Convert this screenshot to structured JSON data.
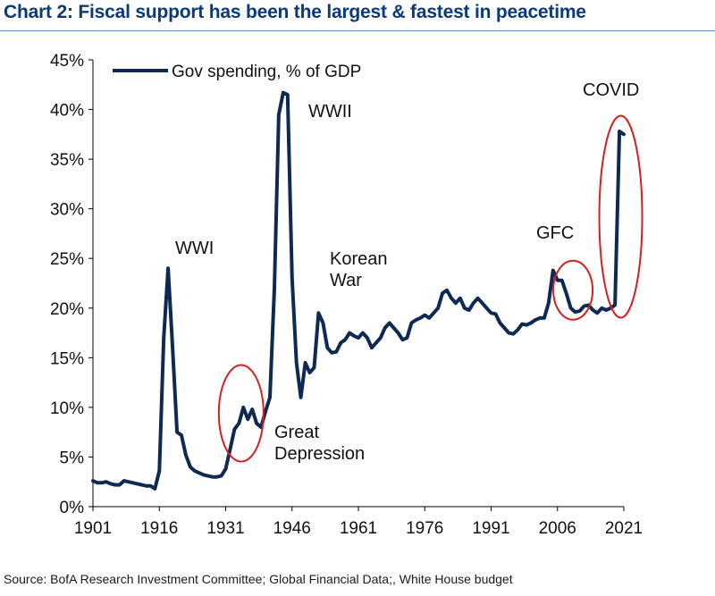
{
  "title": "Chart 2: Fiscal support has been the largest & fastest in peacetime",
  "source": "Source: BofA Research Investment Committee; Global Financial Data;, White House budget",
  "colors": {
    "line": "#0e2a52",
    "circle": "#d42020",
    "title": "#0a3a7a"
  },
  "chart_data": {
    "type": "line",
    "title": "Chart 2: Fiscal support has been the largest & fastest in peacetime",
    "xlabel": "",
    "ylabel": "",
    "xlim": [
      1901,
      2021
    ],
    "ylim": [
      0,
      45
    ],
    "x_ticks": [
      "1901",
      "1916",
      "1931",
      "1946",
      "1961",
      "1976",
      "1991",
      "2006",
      "2021"
    ],
    "y_ticks": [
      "0%",
      "5%",
      "10%",
      "15%",
      "20%",
      "25%",
      "30%",
      "35%",
      "40%",
      "45%"
    ],
    "grid": false,
    "legend": "top-left",
    "series": [
      {
        "name": "Gov spending, % of GDP",
        "x": [
          1901,
          1902,
          1903,
          1904,
          1905,
          1906,
          1907,
          1908,
          1909,
          1910,
          1911,
          1912,
          1913,
          1914,
          1915,
          1916,
          1917,
          1918,
          1919,
          1920,
          1921,
          1922,
          1923,
          1924,
          1925,
          1926,
          1927,
          1928,
          1929,
          1930,
          1931,
          1932,
          1933,
          1934,
          1935,
          1936,
          1937,
          1938,
          1939,
          1940,
          1941,
          1942,
          1943,
          1944,
          1945,
          1946,
          1947,
          1948,
          1949,
          1950,
          1951,
          1952,
          1953,
          1954,
          1955,
          1956,
          1957,
          1958,
          1959,
          1960,
          1961,
          1962,
          1963,
          1964,
          1965,
          1966,
          1967,
          1968,
          1969,
          1970,
          1971,
          1972,
          1973,
          1974,
          1975,
          1976,
          1977,
          1978,
          1979,
          1980,
          1981,
          1982,
          1983,
          1984,
          1985,
          1986,
          1987,
          1988,
          1989,
          1990,
          1991,
          1992,
          1993,
          1994,
          1995,
          1996,
          1997,
          1998,
          1999,
          2000,
          2001,
          2002,
          2003,
          2004,
          2005,
          2006,
          2007,
          2008,
          2009,
          2010,
          2011,
          2012,
          2013,
          2014,
          2015,
          2016,
          2017,
          2018,
          2019,
          2020,
          2021
        ],
        "y": [
          2.6,
          2.4,
          2.4,
          2.5,
          2.3,
          2.2,
          2.2,
          2.6,
          2.5,
          2.4,
          2.3,
          2.2,
          2.1,
          2.1,
          1.8,
          3.6,
          17.0,
          24.0,
          16.0,
          7.5,
          7.2,
          5.2,
          4.0,
          3.6,
          3.4,
          3.2,
          3.1,
          3.0,
          3.0,
          3.1,
          3.8,
          5.8,
          7.8,
          8.4,
          10.0,
          8.8,
          9.8,
          8.4,
          8.0,
          9.6,
          11.0,
          22.0,
          39.5,
          41.7,
          41.5,
          23.0,
          14.5,
          11.0,
          14.5,
          13.5,
          14.0,
          19.5,
          18.5,
          16.0,
          15.5,
          15.6,
          16.5,
          16.8,
          17.5,
          17.2,
          17.0,
          17.5,
          17.0,
          16.0,
          16.5,
          17.0,
          18.0,
          18.5,
          18.0,
          17.5,
          16.8,
          17.0,
          18.5,
          18.8,
          19.0,
          19.3,
          19.0,
          19.5,
          20.0,
          21.5,
          21.8,
          21.0,
          20.5,
          21.0,
          20.0,
          19.8,
          20.5,
          21.0,
          20.5,
          20.0,
          19.5,
          19.4,
          18.5,
          18.0,
          17.5,
          17.4,
          17.8,
          18.4,
          18.3,
          18.5,
          18.8,
          19.0,
          19.0,
          20.5,
          23.8,
          22.8,
          22.8,
          21.5,
          20.0,
          19.6,
          19.7,
          20.2,
          20.3,
          19.8,
          19.5,
          20.0,
          19.8,
          20.0,
          20.3,
          37.8,
          37.5
        ]
      }
    ],
    "annotations": [
      {
        "text": "WWI",
        "x": 1918,
        "y": 24
      },
      {
        "text": "WWII",
        "x": 1944,
        "y": 41.7
      },
      {
        "text": "Korean War",
        "x": 1952,
        "y": 19.5
      },
      {
        "text": "Great Depression",
        "x": 1935,
        "y": 9
      },
      {
        "text": "GFC",
        "x": 2009,
        "y": 23.8
      },
      {
        "text": "COVID",
        "x": 2021,
        "y": 37.5
      }
    ],
    "highlights": [
      {
        "label": "Great Depression",
        "x_center": 1934.5,
        "y_center": 9.4
      },
      {
        "label": "GFC",
        "x_center": 2009.5,
        "y_center": 21.8
      },
      {
        "label": "COVID",
        "x_center": 2020.3,
        "y_center": 29.2
      }
    ]
  }
}
